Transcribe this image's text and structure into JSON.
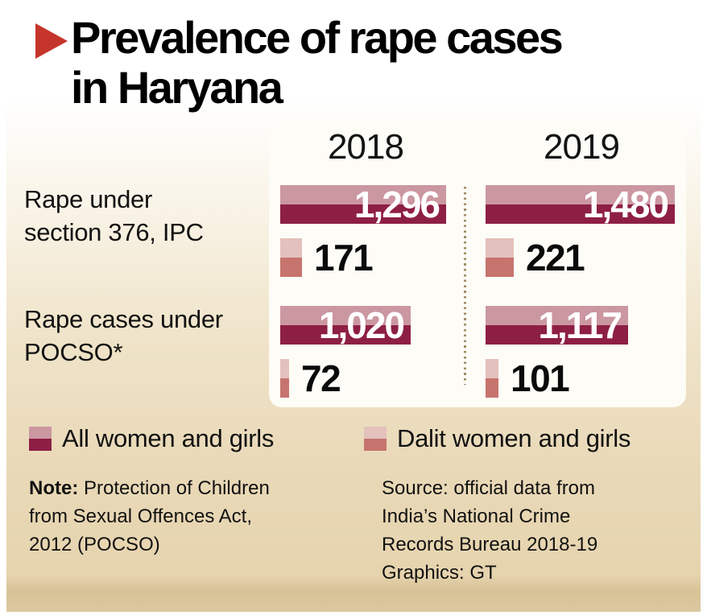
{
  "title": {
    "line1": "Prevalence of rape cases",
    "line2": "in Haryana"
  },
  "columns": [
    "2018",
    "2019"
  ],
  "table": {
    "rows": [
      {
        "label": [
          "Rape under",
          "section 376, IPC"
        ],
        "cells": [
          {
            "all_display": "1,296",
            "all_value": 1296,
            "dalit_display": "171",
            "dalit_value": 171
          },
          {
            "all_display": "1,480",
            "all_value": 1480,
            "dalit_display": "221",
            "dalit_value": 221
          }
        ]
      },
      {
        "label": [
          "Rape cases under",
          "POCSO*"
        ],
        "cells": [
          {
            "all_display": "1,020",
            "all_value": 1020,
            "dalit_display": "72",
            "dalit_value": 72
          },
          {
            "all_display": "1,117",
            "all_value": 1117,
            "dalit_display": "101",
            "dalit_value": 101
          }
        ]
      }
    ]
  },
  "legend": [
    {
      "label": "All women and girls"
    },
    {
      "label": "Dalit women and girls"
    }
  ],
  "note": {
    "label": "Note:",
    "lines": [
      "Protection of Children",
      "from Sexual Offences Act,",
      "2012 (POCSO)"
    ]
  },
  "source": {
    "lines": [
      "Source: official data from",
      "India’s National Crime",
      "Records Bureau 2018-19",
      "Graphics: GT"
    ]
  },
  "colors": {
    "accent_red": "#c5352b",
    "maroon": "#8e1f44",
    "pink_light": "#cb97a1",
    "dalit_light": "#e3c1bd",
    "dalit_dark": "#c7746e",
    "dot_color": "#9f8d64",
    "bg_tan": "#e6d4ae"
  },
  "chart_data": {
    "type": "bar",
    "orientation": "horizontal",
    "title": "Prevalence of rape cases in Haryana",
    "categories": [
      "Rape under section 376, IPC",
      "Rape cases under POCSO*"
    ],
    "groups": [
      "2018",
      "2019"
    ],
    "series": [
      {
        "name": "All women and girls",
        "values": {
          "2018": [
            1296,
            1020
          ],
          "2019": [
            1480,
            1117
          ]
        }
      },
      {
        "name": "Dalit women and girls",
        "values": {
          "2018": [
            171,
            72
          ],
          "2019": [
            221,
            101
          ]
        }
      }
    ],
    "data_labels": true,
    "axes": "none",
    "legend_position": "bottom",
    "note": "Protection of Children from Sexual Offences Act, 2012 (POCSO)",
    "source": "official data from India's National Crime Records Bureau 2018-19",
    "credit": "Graphics: GT"
  }
}
